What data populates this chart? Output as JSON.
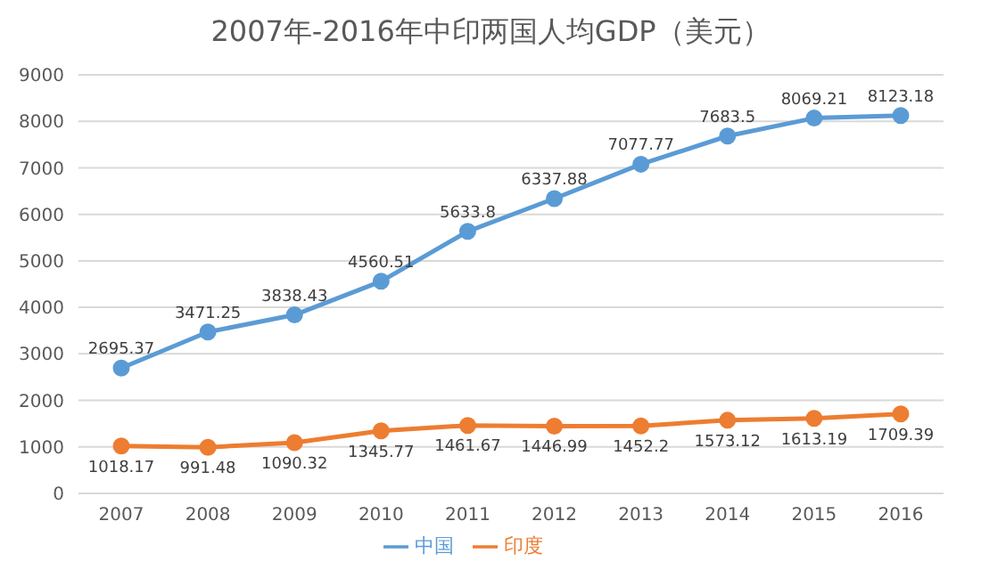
{
  "chart_data": {
    "type": "line",
    "title": "2007年-2016年中印两国人均GDP（美元）",
    "categories": [
      "2007",
      "2008",
      "2009",
      "2010",
      "2011",
      "2012",
      "2013",
      "2014",
      "2015",
      "2016"
    ],
    "series": [
      {
        "name": "中国",
        "color": "#5b9bd5",
        "values": [
          2695.37,
          3471.25,
          3838.43,
          4560.51,
          5633.8,
          6337.88,
          7077.77,
          7683.5,
          8069.21,
          8123.18
        ]
      },
      {
        "name": "印度",
        "color": "#ed7d31",
        "values": [
          1018.17,
          991.48,
          1090.32,
          1345.77,
          1461.67,
          1446.99,
          1452.2,
          1573.12,
          1613.19,
          1709.39
        ]
      }
    ],
    "ylim": [
      0,
      9000
    ],
    "yticks": [
      0,
      1000,
      2000,
      3000,
      4000,
      5000,
      6000,
      7000,
      8000,
      9000
    ],
    "grid": "y",
    "legend": "bottom",
    "marker": "circle",
    "data_labels": true
  }
}
